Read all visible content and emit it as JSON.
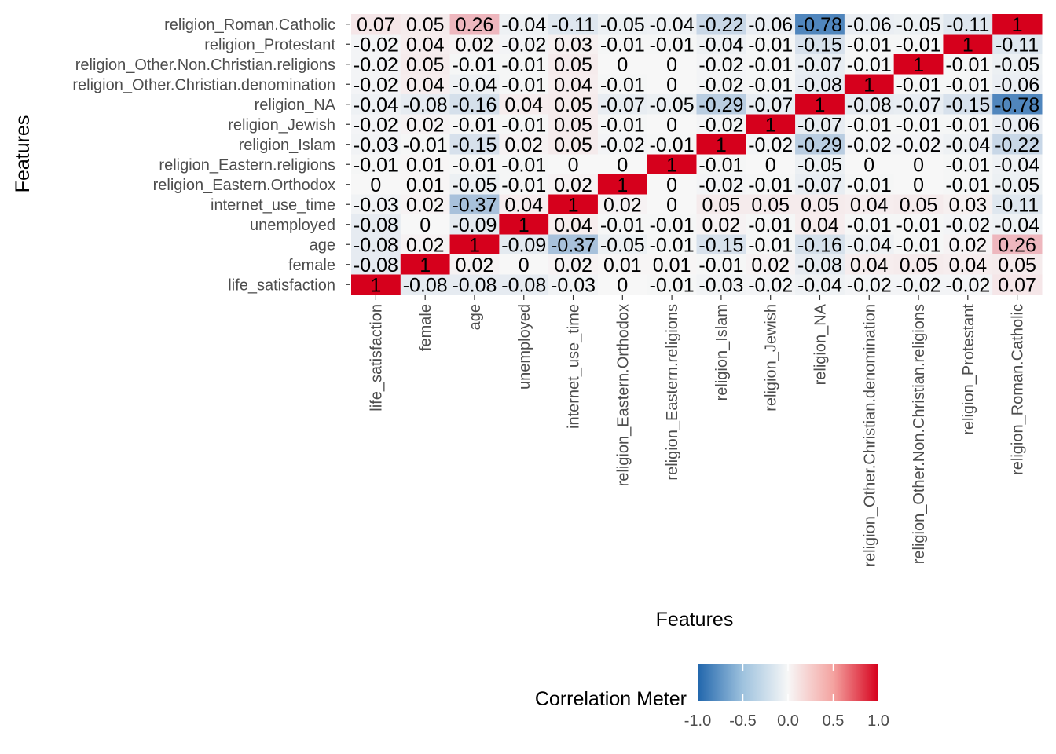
{
  "chart_data": {
    "type": "heatmap",
    "variables": [
      "life_satisfaction",
      "female",
      "age",
      "unemployed",
      "internet_use_time",
      "religion_Eastern.Orthodox",
      "religion_Eastern.religions",
      "religion_Islam",
      "religion_Jewish",
      "religion_NA",
      "religion_Other.Christian.denomination",
      "religion_Other.Non.Christian.religions",
      "religion_Protestant",
      "religion_Roman.Catholic"
    ],
    "matrix": [
      [
        1,
        -0.08,
        -0.08,
        -0.08,
        -0.03,
        0,
        -0.01,
        -0.03,
        -0.02,
        -0.04,
        -0.02,
        -0.02,
        -0.02,
        0.07
      ],
      [
        -0.08,
        1,
        0.02,
        0,
        0.02,
        0.01,
        0.01,
        -0.01,
        0.02,
        -0.08,
        0.04,
        0.05,
        0.04,
        0.05
      ],
      [
        -0.08,
        0.02,
        1,
        -0.09,
        -0.37,
        -0.05,
        -0.01,
        -0.15,
        -0.01,
        -0.16,
        -0.04,
        -0.01,
        0.02,
        0.26
      ],
      [
        -0.08,
        0,
        -0.09,
        1,
        0.04,
        -0.01,
        -0.01,
        0.02,
        -0.01,
        0.04,
        -0.01,
        -0.01,
        -0.02,
        -0.04
      ],
      [
        -0.03,
        0.02,
        -0.37,
        0.04,
        1,
        0.02,
        0,
        0.05,
        0.05,
        0.05,
        0.04,
        0.05,
        0.03,
        -0.11
      ],
      [
        0,
        0.01,
        -0.05,
        -0.01,
        0.02,
        1,
        0,
        -0.02,
        -0.01,
        -0.07,
        -0.01,
        0,
        -0.01,
        -0.05
      ],
      [
        -0.01,
        0.01,
        -0.01,
        -0.01,
        0,
        0,
        1,
        -0.01,
        0,
        -0.05,
        0,
        0,
        -0.01,
        -0.04
      ],
      [
        -0.03,
        -0.01,
        -0.15,
        0.02,
        0.05,
        -0.02,
        -0.01,
        1,
        -0.02,
        -0.29,
        -0.02,
        -0.02,
        -0.04,
        -0.22
      ],
      [
        -0.02,
        0.02,
        -0.01,
        -0.01,
        0.05,
        -0.01,
        0,
        -0.02,
        1,
        -0.07,
        -0.01,
        -0.01,
        -0.01,
        -0.06
      ],
      [
        -0.04,
        -0.08,
        -0.16,
        0.04,
        0.05,
        -0.07,
        -0.05,
        -0.29,
        -0.07,
        1,
        -0.08,
        -0.07,
        -0.15,
        -0.78
      ],
      [
        -0.02,
        0.04,
        -0.04,
        -0.01,
        0.04,
        -0.01,
        0,
        -0.02,
        -0.01,
        -0.08,
        1,
        -0.01,
        -0.01,
        -0.06
      ],
      [
        -0.02,
        0.05,
        -0.01,
        -0.01,
        0.05,
        0,
        0,
        -0.02,
        -0.01,
        -0.07,
        -0.01,
        1,
        -0.01,
        -0.05
      ],
      [
        -0.02,
        0.04,
        0.02,
        -0.02,
        0.03,
        -0.01,
        -0.01,
        -0.04,
        -0.01,
        -0.15,
        -0.01,
        -0.01,
        1,
        -0.11
      ],
      [
        0.07,
        0.05,
        0.26,
        -0.04,
        -0.11,
        -0.05,
        -0.04,
        -0.22,
        -0.06,
        -0.78,
        -0.06,
        -0.05,
        -0.11,
        1
      ]
    ],
    "xlabel": "Features",
    "ylabel": "Features",
    "legend": {
      "title": "Correlation Meter",
      "ticks": [
        "-1.0",
        "-0.5",
        "0.0",
        "0.5",
        "1.0"
      ],
      "range": [
        -1,
        1
      ],
      "placement": "bottom"
    },
    "colors": {
      "low": "#2166ac",
      "mid": "#f7f7f7",
      "high": "#d6001c",
      "cell_text": "#000000",
      "axis_text": "#4d4d4d"
    }
  }
}
